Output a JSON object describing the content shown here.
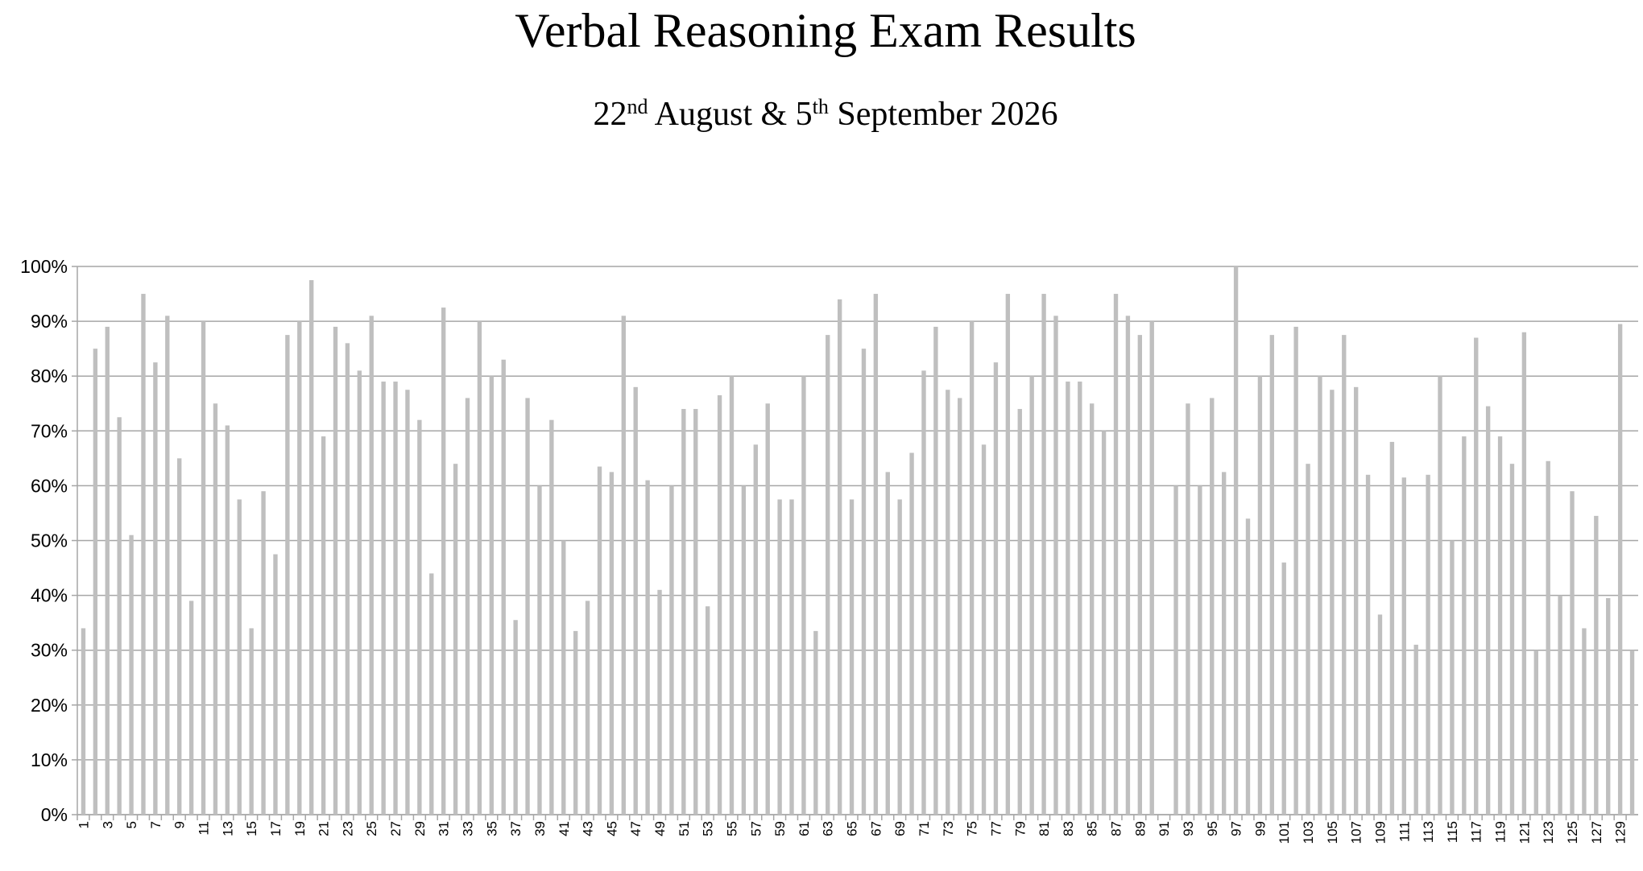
{
  "chart_data": {
    "type": "bar",
    "title": "Verbal Reasoning Exam Results",
    "subtitle": [
      "22",
      "nd",
      " August & 5",
      "th",
      " September 2026"
    ],
    "categories": [
      "1",
      null,
      "3",
      null,
      "5",
      null,
      "7",
      null,
      "9",
      null,
      "11",
      null,
      "13",
      null,
      "15",
      null,
      "17",
      null,
      "19",
      null,
      "21",
      null,
      "23",
      null,
      "25",
      null,
      "27",
      null,
      "29",
      null,
      "31",
      null,
      "33",
      null,
      "35",
      null,
      "37",
      null,
      "39",
      null,
      "41",
      null,
      "43",
      null,
      "45",
      null,
      "47",
      null,
      "49",
      null,
      "51",
      null,
      "53",
      null,
      "55",
      null,
      "57",
      null,
      "59",
      null,
      "61",
      null,
      "63",
      null,
      "65",
      null,
      "67",
      null,
      "69",
      null,
      "71",
      null,
      "73",
      null,
      "75",
      null,
      "77",
      null,
      "79",
      null,
      "81",
      null,
      "83",
      null,
      "85",
      null,
      "87",
      null,
      "89",
      null,
      "91",
      null,
      "93",
      null,
      "95",
      null,
      "97",
      null,
      "99",
      null,
      "101",
      null,
      "103",
      null,
      "105",
      null,
      "107",
      null,
      "109",
      null,
      "111",
      null,
      "113",
      null,
      "115",
      null,
      "117",
      null,
      "119",
      null,
      "121",
      null,
      "123",
      null,
      "125",
      null,
      "127",
      null,
      "129",
      null
    ],
    "values": [
      34,
      85,
      89,
      72.5,
      51,
      95,
      82.5,
      91,
      65,
      39,
      90,
      75,
      71,
      57.5,
      34,
      59,
      47.5,
      87.5,
      90,
      97.5,
      69,
      89,
      86,
      81,
      91,
      79,
      79,
      77.5,
      72,
      44,
      92.5,
      64,
      76,
      90,
      80,
      83,
      35.5,
      76,
      60,
      72,
      50,
      33.5,
      39,
      63.5,
      62.5,
      91,
      78,
      61,
      41,
      60,
      74,
      74,
      38,
      76.5,
      80,
      60,
      67.5,
      75,
      57.5,
      57.5,
      80,
      33.5,
      87.5,
      94,
      57.5,
      85,
      95,
      62.5,
      57.5,
      66,
      81,
      89,
      77.5,
      76,
      90,
      67.5,
      82.5,
      95,
      74,
      80,
      95,
      91,
      79,
      79,
      75,
      70,
      95,
      91,
      87.5,
      90,
      0,
      60,
      75,
      60,
      76,
      62.5,
      100,
      54,
      80,
      87.5,
      46,
      89,
      64,
      80,
      77.5,
      87.5,
      78,
      62,
      36.5,
      68,
      61.5,
      31,
      62,
      80,
      50,
      69,
      87,
      74.5,
      69,
      64,
      88,
      30,
      64.5,
      40,
      59,
      34,
      54.5,
      39.5,
      89.5,
      30
    ],
    "color": "#bfbfbf",
    "ylim": [
      0,
      100
    ],
    "yticks": [
      {
        "value": 0,
        "label": "0%"
      },
      {
        "value": 10,
        "label": "10%"
      },
      {
        "value": 20,
        "label": "20%"
      },
      {
        "value": 30,
        "label": "30%"
      },
      {
        "value": 40,
        "label": "40%"
      },
      {
        "value": 50,
        "label": "50%"
      },
      {
        "value": 60,
        "label": "60%"
      },
      {
        "value": 70,
        "label": "70%"
      },
      {
        "value": 80,
        "label": "80%"
      },
      {
        "value": 90,
        "label": "90%"
      },
      {
        "value": 100,
        "label": "100%"
      }
    ],
    "grid": true
  }
}
